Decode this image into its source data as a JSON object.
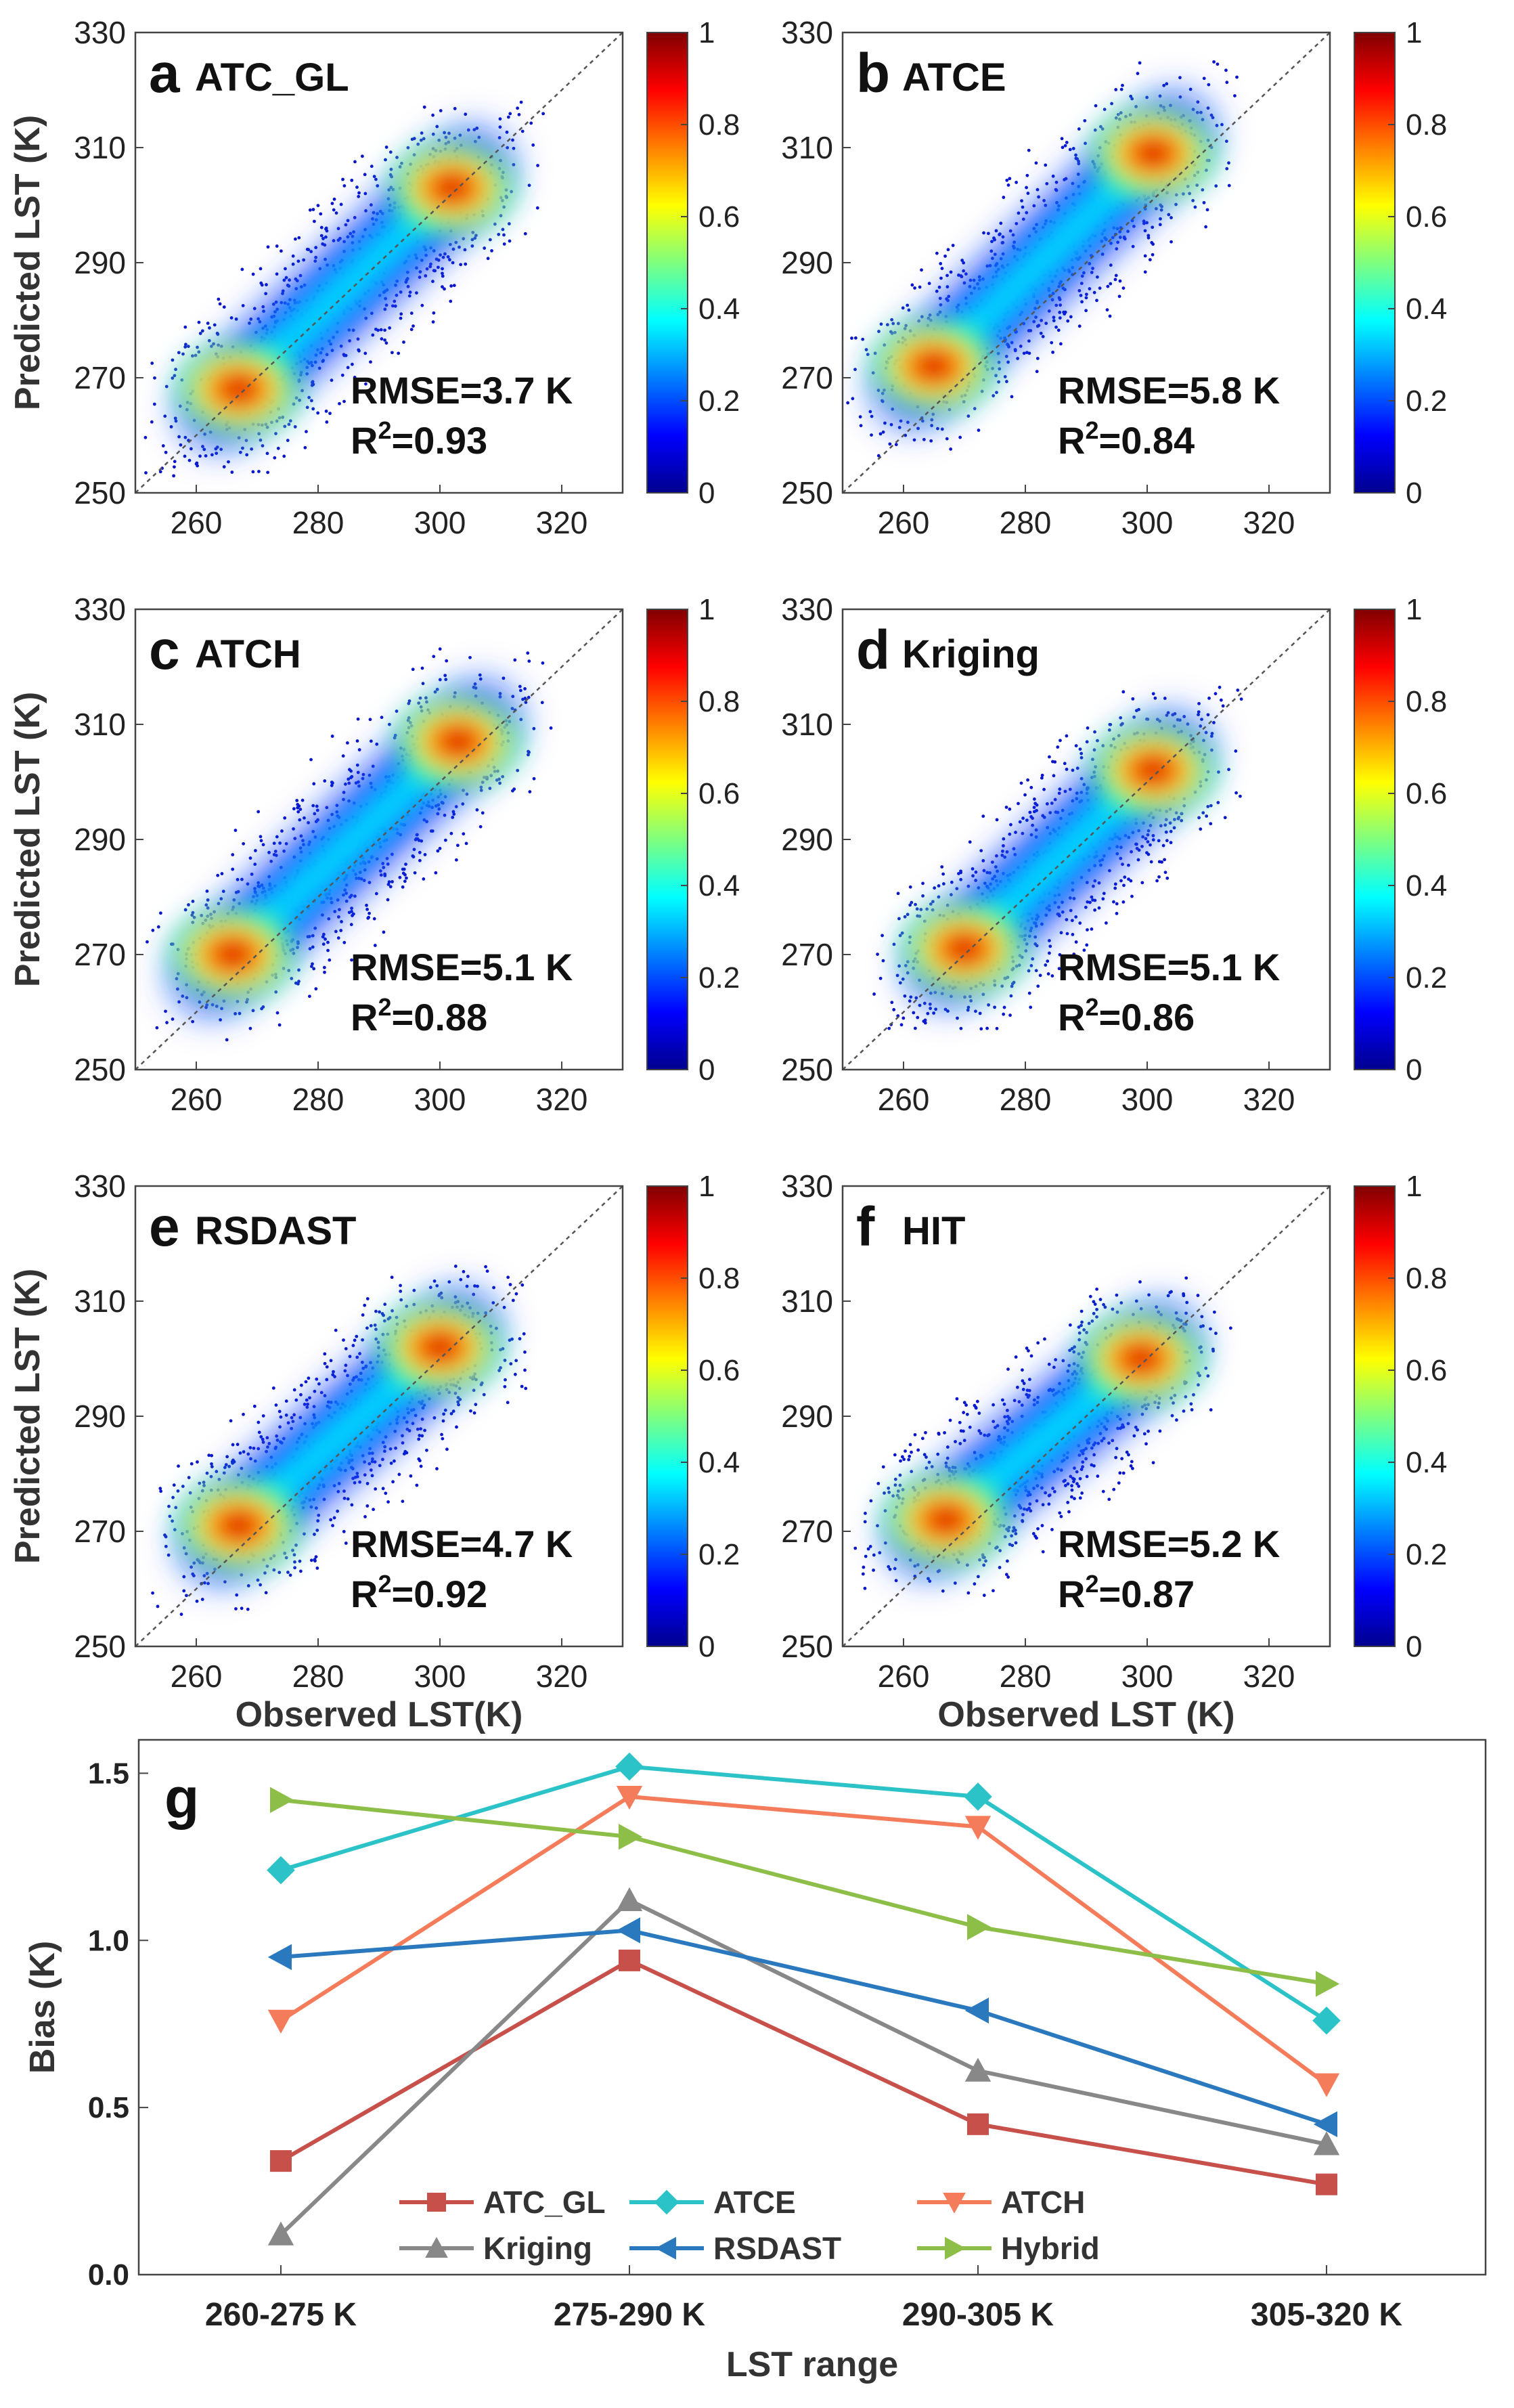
{
  "scatter_panels_common": {
    "xlabel": "Observed LST(K)",
    "xlabel_alt": "Observed LST (K)",
    "ylabel": "Predicted LST (K)",
    "x_ticks": [
      260,
      280,
      300,
      320
    ],
    "y_ticks": [
      250,
      270,
      290,
      310,
      330
    ],
    "xlim": [
      250,
      330
    ],
    "ylim": [
      250,
      330
    ],
    "colorbar_ticks": [
      "0",
      "0.2",
      "0.4",
      "0.6",
      "0.8",
      "1"
    ]
  },
  "chart_data": [
    {
      "type": "scatter",
      "letter": "a",
      "name": "ATC_GL",
      "rmse": "RMSE=3.7 K",
      "r2_prefix": "R",
      "r2_sup": "2",
      "r2_value": "=0.93",
      "density_peaks": [
        [
          267,
          268
        ],
        [
          302,
          303
        ]
      ]
    },
    {
      "type": "scatter",
      "letter": "b",
      "name": "ATCE",
      "rmse": "RMSE=5.8 K",
      "r2_prefix": "R",
      "r2_sup": "2",
      "r2_value": "=0.84",
      "density_peaks": [
        [
          265,
          272
        ],
        [
          301,
          309
        ]
      ]
    },
    {
      "type": "scatter",
      "letter": "c",
      "name": "ATCH",
      "rmse": "RMSE=5.1 K",
      "r2_prefix": "R",
      "r2_sup": "2",
      "r2_value": "=0.88",
      "density_peaks": [
        [
          266,
          270
        ],
        [
          303,
          307
        ]
      ]
    },
    {
      "type": "scatter",
      "letter": "d",
      "name": "Kriging",
      "rmse": "RMSE=5.1 K",
      "r2_prefix": "R",
      "r2_sup": "2",
      "r2_value": "=0.86",
      "density_peaks": [
        [
          270,
          271
        ],
        [
          301,
          302
        ]
      ]
    },
    {
      "type": "scatter",
      "letter": "e",
      "name": "RSDAST",
      "rmse": "RMSE=4.7 K",
      "r2_prefix": "R",
      "r2_sup": "2",
      "r2_value": "=0.92",
      "density_peaks": [
        [
          267,
          271
        ],
        [
          300,
          302
        ]
      ]
    },
    {
      "type": "scatter",
      "letter": "f",
      "name": "HIT",
      "rmse": "RMSE=5.2 K",
      "r2_prefix": "R",
      "r2_sup": "2",
      "r2_value": "=0.87",
      "density_peaks": [
        [
          267,
          272
        ],
        [
          299,
          300
        ]
      ]
    },
    {
      "type": "line",
      "letter": "g",
      "xlabel": "LST range",
      "ylabel": "Bias (K)",
      "categories": [
        "260-275 K",
        "275-290 K",
        "290-305 K",
        "305-320 K"
      ],
      "ylim": [
        0,
        1.6
      ],
      "y_ticks": [
        "0.0",
        "0.5",
        "1.0",
        "1.5"
      ],
      "series": [
        {
          "name": "ATC_GL",
          "color": "#c8504a",
          "marker": "square",
          "values": [
            0.34,
            0.94,
            0.45,
            0.27
          ]
        },
        {
          "name": "ATCE",
          "color": "#2cc3c8",
          "marker": "diamond",
          "values": [
            1.21,
            1.52,
            1.43,
            0.76
          ]
        },
        {
          "name": "ATCH",
          "color": "#f57c5a",
          "marker": "triangle-down",
          "values": [
            0.76,
            1.43,
            1.34,
            0.57
          ]
        },
        {
          "name": "Kriging",
          "color": "#888888",
          "marker": "triangle-up",
          "values": [
            0.12,
            1.12,
            0.61,
            0.39
          ]
        },
        {
          "name": "RSDAST",
          "color": "#2a78bd",
          "marker": "triangle-left",
          "values": [
            0.95,
            1.03,
            0.79,
            0.45
          ]
        },
        {
          "name": "Hybrid",
          "color": "#8dbe48",
          "marker": "triangle-right",
          "values": [
            1.42,
            1.31,
            1.04,
            0.87
          ]
        }
      ]
    }
  ]
}
